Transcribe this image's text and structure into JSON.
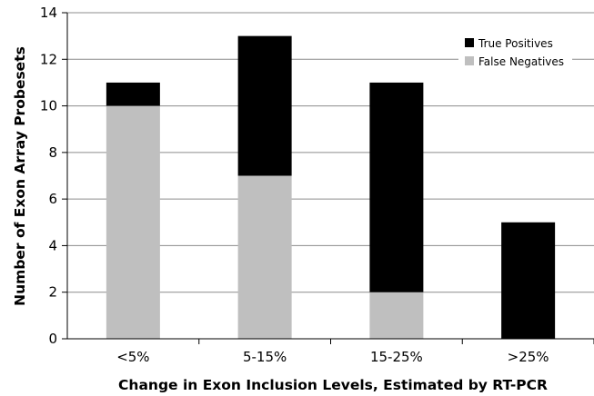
{
  "chart_data": {
    "type": "bar",
    "stacked": true,
    "categories": [
      "<5%",
      "5-15%",
      "15-25%",
      ">25%"
    ],
    "series": [
      {
        "name": "False Negatives",
        "values": [
          10,
          7,
          2,
          0
        ],
        "color": "#bfbfbf"
      },
      {
        "name": "True Positives",
        "values": [
          1,
          6,
          9,
          5
        ],
        "color": "#000000"
      }
    ],
    "legend_order": [
      "True Positives",
      "False Negatives"
    ],
    "xlabel": "Change in Exon Inclusion Levels, Estimated by RT-PCR",
    "ylabel": "Number of Exon Array Probesets",
    "ylim": [
      0,
      14
    ],
    "yticks": [
      0,
      2,
      4,
      6,
      8,
      10,
      12,
      14
    ],
    "grid": true,
    "legend_position": "top-right"
  }
}
